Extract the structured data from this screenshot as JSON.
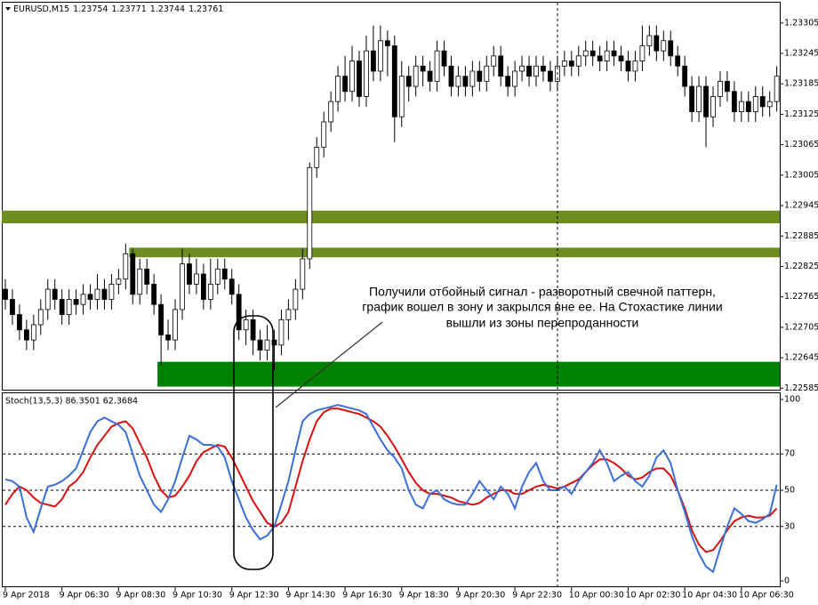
{
  "chart_data": [
    {
      "type": "candlestick",
      "title": "EURUSD,M15",
      "header_values": [
        1.23754,
        1.23771,
        1.23744,
        1.23761
      ],
      "categories": [
        "9 Apr 2018",
        null,
        null,
        null,
        null,
        null,
        null,
        null,
        "9 Apr 06:30",
        null,
        null,
        null,
        null,
        null,
        null,
        null,
        "9 Apr 08:30",
        null,
        null,
        null,
        null,
        null,
        null,
        null,
        "9 Apr 10:30",
        null,
        null,
        null,
        null,
        null,
        null,
        null,
        "9 Apr 12:30",
        null,
        null,
        null,
        null,
        null,
        null,
        null,
        "9 Apr 14:30",
        null,
        null,
        null,
        null,
        null,
        null,
        null,
        "9 Apr 16:30",
        null,
        null,
        null,
        null,
        null,
        null,
        null,
        "9 Apr 18:30",
        null,
        null,
        null,
        null,
        null,
        null,
        null,
        "9 Apr 20:30",
        null,
        null,
        null,
        null,
        null,
        null,
        null,
        "9 Apr 22:30",
        null,
        null,
        null,
        null,
        null,
        null,
        null,
        "10 Apr 00:30",
        null,
        null,
        null,
        null,
        null,
        null,
        null,
        "10 Apr 02:30",
        null,
        null,
        null,
        null,
        null,
        null,
        null,
        "10 Apr 04:30",
        null,
        null,
        null,
        null,
        null,
        null,
        null,
        "10 Apr 06:30",
        null,
        null,
        null,
        null,
        null
      ],
      "open": [
        1.2278,
        1.2276,
        1.2273,
        1.227,
        1.2268,
        1.2271,
        1.2274,
        1.2278,
        1.2276,
        1.2273,
        1.2276,
        1.2275,
        1.2277,
        1.2276,
        1.2278,
        1.2276,
        1.2279,
        1.228,
        1.2285,
        1.2277,
        1.2282,
        1.2279,
        1.2275,
        1.2269,
        1.2268,
        1.2274,
        1.2283,
        1.2279,
        1.2281,
        1.2276,
        1.2279,
        1.2282,
        1.228,
        1.2277,
        1.227,
        1.2272,
        1.2268,
        1.2266,
        1.2268,
        1.2267,
        1.2272,
        1.2274,
        1.2278,
        1.2284,
        1.2302,
        1.2306,
        1.2311,
        1.2315,
        1.232,
        1.2317,
        1.2323,
        1.2316,
        1.2325,
        1.2321,
        1.2327,
        1.2326,
        1.2312,
        1.232,
        1.2318,
        1.2322,
        1.2321,
        1.2319,
        1.2325,
        1.2322,
        1.2318,
        1.232,
        1.2318,
        1.2321,
        1.2319,
        1.2322,
        1.2324,
        1.232,
        1.2318,
        1.2321,
        1.2322,
        1.232,
        1.2322,
        1.2321,
        1.2319,
        1.2322,
        1.2323,
        1.2322,
        1.2324,
        1.2325,
        1.2324,
        1.2323,
        1.2325,
        1.2324,
        1.2323,
        1.2321,
        1.2323,
        1.2326,
        1.2328,
        1.2325,
        1.2327,
        1.2324,
        1.2322,
        1.2318,
        1.2313,
        1.2318,
        1.2312,
        1.2316,
        1.2319,
        1.2317,
        1.2313,
        1.2315,
        1.2313,
        1.2316,
        1.2314,
        1.2315
      ],
      "high": [
        1.228,
        1.2278,
        1.2275,
        1.2272,
        1.2273,
        1.2276,
        1.228,
        1.228,
        1.2278,
        1.2278,
        1.2278,
        1.2279,
        1.2279,
        1.2281,
        1.228,
        1.2281,
        1.2282,
        1.2287,
        1.2286,
        1.2284,
        1.2284,
        1.2281,
        1.2277,
        1.2272,
        1.2276,
        1.2286,
        1.2285,
        1.2284,
        1.2283,
        1.2284,
        1.2284,
        1.2284,
        1.2282,
        1.2279,
        1.2274,
        1.2274,
        1.227,
        1.2271,
        1.227,
        1.2274,
        1.2276,
        1.228,
        1.2286,
        1.2303,
        1.2308,
        1.2313,
        1.2317,
        1.2322,
        1.2324,
        1.2326,
        1.2325,
        1.2328,
        1.233,
        1.233,
        1.2329,
        1.2328,
        1.2323,
        1.2322,
        1.2324,
        1.2324,
        1.2323,
        1.2327,
        1.2327,
        1.2324,
        1.2322,
        1.2322,
        1.2323,
        1.2323,
        1.2324,
        1.2326,
        1.2326,
        1.2322,
        1.2323,
        1.2324,
        1.2324,
        1.2324,
        1.2324,
        1.2323,
        1.2324,
        1.2325,
        1.2325,
        1.2326,
        1.2327,
        1.2327,
        1.2326,
        1.2327,
        1.2327,
        1.2326,
        1.2325,
        1.2325,
        1.233,
        1.233,
        1.233,
        1.2329,
        1.2329,
        1.2326,
        1.2324,
        1.232,
        1.232,
        1.232,
        1.2318,
        1.2321,
        1.2321,
        1.2319,
        1.2317,
        1.2317,
        1.2318,
        1.2318,
        1.2317,
        1.2322
      ],
      "low": [
        1.2274,
        1.2271,
        1.2268,
        1.2266,
        1.2266,
        1.2269,
        1.2272,
        1.2274,
        1.2271,
        1.2271,
        1.2273,
        1.2273,
        1.2274,
        1.2274,
        1.2274,
        1.2274,
        1.2277,
        1.2278,
        1.2275,
        1.2275,
        1.2277,
        1.2273,
        1.2263,
        1.2266,
        1.2266,
        1.2272,
        1.2277,
        1.2277,
        1.2274,
        1.2274,
        1.2277,
        1.2278,
        1.2275,
        1.2268,
        1.2267,
        1.2265,
        1.2264,
        1.2264,
        1.2262,
        1.2265,
        1.2268,
        1.2272,
        1.2276,
        1.2282,
        1.23,
        1.2304,
        1.2309,
        1.2313,
        1.2315,
        1.2315,
        1.2314,
        1.2314,
        1.2319,
        1.2319,
        1.232,
        1.2307,
        1.231,
        1.2315,
        1.2316,
        1.2318,
        1.2317,
        1.2317,
        1.232,
        1.2316,
        1.2316,
        1.2316,
        1.2316,
        1.2317,
        1.2317,
        1.232,
        1.2318,
        1.2316,
        1.2316,
        1.2319,
        1.2318,
        1.2318,
        1.2319,
        1.2317,
        1.2317,
        1.232,
        1.232,
        1.232,
        1.2322,
        1.2322,
        1.2321,
        1.2321,
        1.2322,
        1.2321,
        1.2319,
        1.2319,
        1.2321,
        1.2324,
        1.2323,
        1.2323,
        1.2322,
        1.232,
        1.2316,
        1.2311,
        1.2311,
        1.2306,
        1.231,
        1.2314,
        1.2315,
        1.2311,
        1.2311,
        1.2311,
        1.2311,
        1.2312,
        1.2312,
        1.2313
      ],
      "close": [
        1.2276,
        1.2273,
        1.227,
        1.2268,
        1.2271,
        1.2274,
        1.2278,
        1.2276,
        1.2273,
        1.2276,
        1.2275,
        1.2277,
        1.2276,
        1.2278,
        1.2276,
        1.2279,
        1.228,
        1.2285,
        1.2277,
        1.2282,
        1.2279,
        1.2275,
        1.2269,
        1.2268,
        1.2274,
        1.2283,
        1.2279,
        1.2281,
        1.2276,
        1.2279,
        1.2282,
        1.228,
        1.2277,
        1.227,
        1.2272,
        1.2268,
        1.2266,
        1.2268,
        1.2267,
        1.2272,
        1.2274,
        1.2278,
        1.2284,
        1.2302,
        1.2306,
        1.2311,
        1.2315,
        1.232,
        1.2317,
        1.2323,
        1.2316,
        1.2325,
        1.2321,
        1.2327,
        1.2326,
        1.2312,
        1.232,
        1.2318,
        1.2322,
        1.2321,
        1.2319,
        1.2325,
        1.2322,
        1.2318,
        1.232,
        1.2318,
        1.2321,
        1.2319,
        1.2322,
        1.2324,
        1.232,
        1.2318,
        1.2321,
        1.2322,
        1.232,
        1.2322,
        1.2321,
        1.2319,
        1.2322,
        1.2323,
        1.2322,
        1.2324,
        1.2325,
        1.2324,
        1.2323,
        1.2325,
        1.2324,
        1.2323,
        1.2321,
        1.2323,
        1.2326,
        1.2328,
        1.2325,
        1.2327,
        1.2324,
        1.2322,
        1.2318,
        1.2313,
        1.2318,
        1.2312,
        1.2316,
        1.2319,
        1.2317,
        1.2313,
        1.2315,
        1.2313,
        1.2316,
        1.2314,
        1.2315,
        1.232
      ],
      "ylim": [
        1.22582,
        1.23345
      ],
      "yticks": [
        1.23305,
        1.23245,
        1.23185,
        1.23125,
        1.23065,
        1.23005,
        1.22945,
        1.22885,
        1.22825,
        1.22765,
        1.22705,
        1.22645,
        1.22585
      ],
      "zones": [
        {
          "low": 1.2291,
          "high": 1.22935,
          "start": 0,
          "color": "#6b8e1f"
        },
        {
          "low": 1.22843,
          "high": 1.22862,
          "start": 18,
          "color": "#6b8e1f"
        },
        {
          "low": 1.22588,
          "high": 1.22637,
          "start": 22,
          "color": "#008000"
        }
      ],
      "annotation": [
        "Получили отбойный сигнал - разворотный свечной паттерн,",
        "график вошел в зону и закрылся вне ее. На Стохастике линии",
        "вышли из зоны перепроданности"
      ]
    },
    {
      "type": "line",
      "title": "Stoch(13,5,3) 86.3501 62.3684",
      "ylim": [
        0,
        100
      ],
      "yticks": [
        0,
        30,
        50,
        70,
        100
      ],
      "levels": [
        30,
        50,
        70
      ],
      "series": [
        {
          "color": "#3a6fd8",
          "values": [
            56,
            55,
            52,
            35,
            27,
            40,
            52,
            53,
            55,
            58,
            62,
            72,
            82,
            88,
            90,
            88,
            86,
            82,
            70,
            58,
            50,
            42,
            38,
            45,
            55,
            68,
            80,
            78,
            75,
            75,
            74,
            68,
            55,
            45,
            35,
            28,
            23,
            25,
            30,
            42,
            55,
            72,
            88,
            92,
            94,
            95,
            96,
            97,
            96,
            95,
            94,
            92,
            85,
            78,
            72,
            68,
            62,
            50,
            42,
            40,
            48,
            50,
            45,
            43,
            42,
            42,
            48,
            55,
            50,
            45,
            52,
            48,
            40,
            52,
            60,
            65,
            55,
            50,
            50,
            52,
            48,
            55,
            60,
            65,
            72,
            65,
            55,
            58,
            60,
            55,
            52,
            58,
            68,
            72,
            65,
            50,
            38,
            25,
            15,
            8,
            5,
            18,
            30,
            40,
            37,
            33,
            32,
            34,
            37,
            53
          ]
        },
        {
          "color": "#d81010",
          "values": [
            42,
            48,
            52,
            50,
            46,
            43,
            42,
            41,
            45,
            52,
            55,
            60,
            68,
            75,
            80,
            85,
            87,
            88,
            84,
            76,
            68,
            58,
            50,
            46,
            47,
            52,
            58,
            66,
            71,
            73,
            75,
            74,
            68,
            60,
            52,
            44,
            38,
            32,
            30,
            32,
            38,
            52,
            66,
            78,
            88,
            93,
            95,
            95,
            94,
            93,
            92,
            90,
            88,
            85,
            80,
            74,
            67,
            60,
            54,
            50,
            48,
            48,
            47,
            46,
            44,
            43,
            42,
            43,
            46,
            48,
            50,
            50,
            48,
            48,
            50,
            52,
            53,
            52,
            51,
            52,
            54,
            56,
            60,
            64,
            67,
            67,
            65,
            62,
            58,
            56,
            57,
            60,
            62,
            62,
            58,
            50,
            40,
            28,
            20,
            16,
            17,
            22,
            28,
            33,
            35,
            36,
            35,
            35,
            36,
            40
          ]
        }
      ]
    }
  ]
}
